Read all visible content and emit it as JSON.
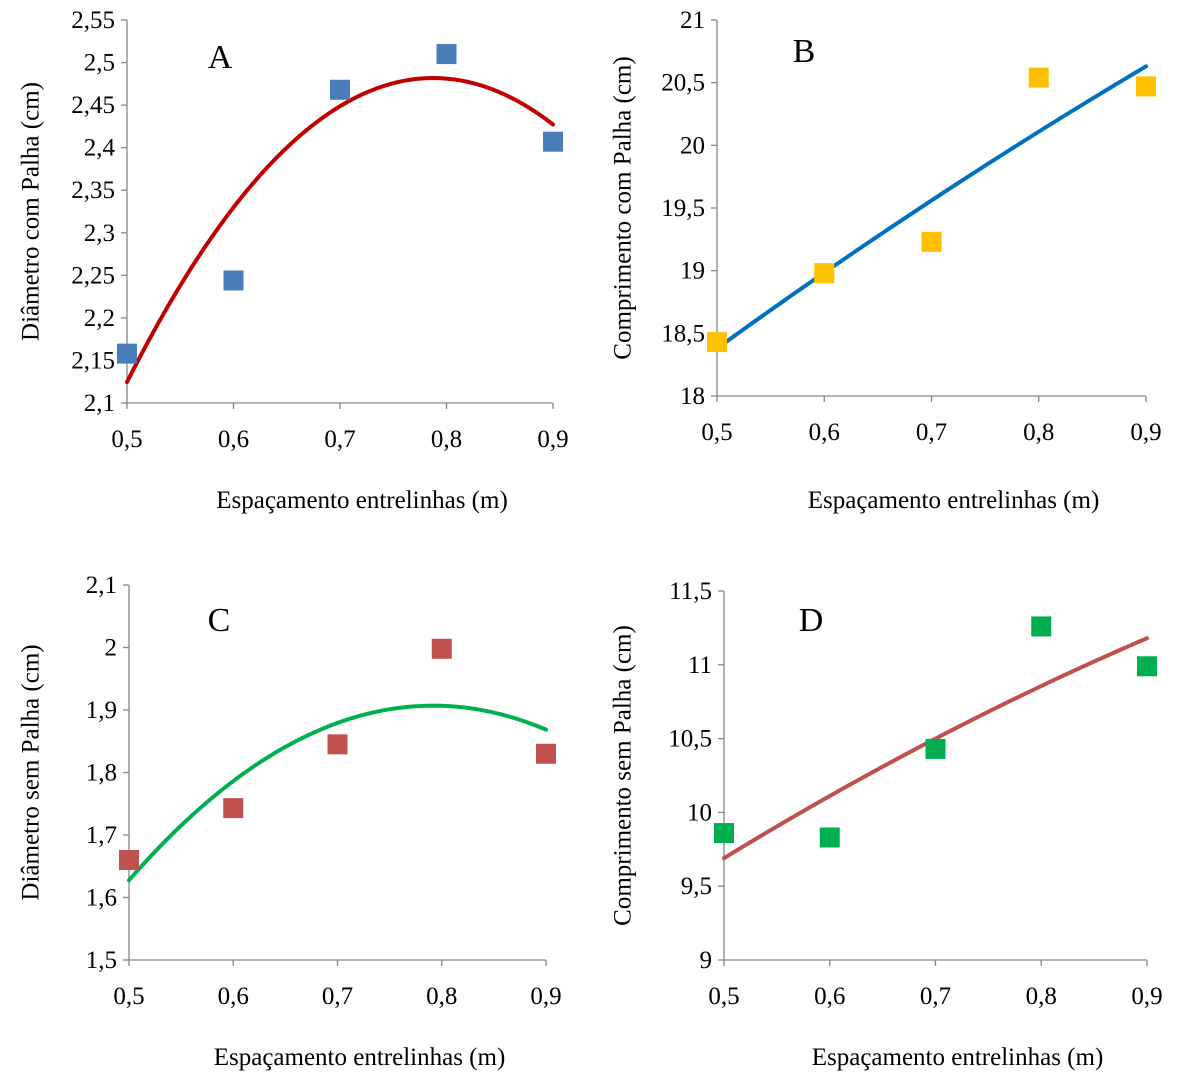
{
  "chart_data": [
    {
      "panel_label": "A",
      "type": "scatter",
      "x": [
        0.5,
        0.6,
        0.7,
        0.8,
        0.9
      ],
      "y": [
        2.158,
        2.244,
        2.468,
        2.51,
        2.407
      ],
      "marker_color": "#4a7ebb",
      "trendline": {
        "type": "quadratic",
        "color": "#c00000",
        "points": [
          [
            0.5,
            2.123
          ],
          [
            0.65,
            2.405
          ],
          [
            0.8,
            2.475
          ],
          [
            0.9,
            2.43
          ]
        ]
      },
      "xlabel": "Espaçamento entrelinhas (m)",
      "ylabel": "Diâmetro com Palha (cm)",
      "xlim": [
        0.5,
        0.9
      ],
      "ylim": [
        2.1,
        2.55
      ],
      "xticks": [
        "0,5",
        "0,6",
        "0,7",
        "0,8",
        "0,9"
      ],
      "yticks": [
        "2,1",
        "2,15",
        "2,2",
        "2,25",
        "2,3",
        "2,35",
        "2,4",
        "2,45",
        "2,5",
        "2,55"
      ],
      "grid": false
    },
    {
      "panel_label": "B",
      "type": "scatter",
      "x": [
        0.5,
        0.6,
        0.7,
        0.8,
        0.9
      ],
      "y": [
        18.43,
        18.98,
        19.23,
        20.54,
        20.47
      ],
      "marker_color": "#ffc000",
      "trendline": {
        "type": "quadratic",
        "color": "#0070c0",
        "points": [
          [
            0.5,
            18.38
          ],
          [
            0.7,
            19.56
          ],
          [
            0.9,
            20.63
          ]
        ]
      },
      "xlabel": "Espaçamento entrelinhas (m)",
      "ylabel": "Comprimento com Palha (cm)",
      "xlim": [
        0.5,
        0.9
      ],
      "ylim": [
        18,
        21
      ],
      "xticks": [
        "0,5",
        "0,6",
        "0,7",
        "0,8",
        "0,9"
      ],
      "yticks": [
        "18",
        "18,5",
        "19",
        "19,5",
        "20",
        "20,5",
        "21"
      ],
      "grid": false
    },
    {
      "panel_label": "C",
      "type": "scatter",
      "x": [
        0.5,
        0.6,
        0.7,
        0.8,
        0.9
      ],
      "y": [
        1.66,
        1.743,
        1.845,
        1.998,
        1.83
      ],
      "marker_color": "#c0504d",
      "trendline": {
        "type": "quadratic",
        "color": "#00b050",
        "points": [
          [
            0.5,
            1.628
          ],
          [
            0.65,
            1.84
          ],
          [
            0.8,
            1.908
          ],
          [
            0.9,
            1.868
          ]
        ]
      },
      "xlabel": "Espaçamento entrelinhas (m)",
      "ylabel": "Diâmetro sem Palha (cm)",
      "xlim": [
        0.5,
        0.9
      ],
      "ylim": [
        1.5,
        2.1
      ],
      "xticks": [
        "0,5",
        "0,6",
        "0,7",
        "0,8",
        "0,9"
      ],
      "yticks": [
        "1,5",
        "1,6",
        "1,7",
        "1,8",
        "1,9",
        "2",
        "2,1"
      ],
      "grid": false
    },
    {
      "panel_label": "D",
      "type": "scatter",
      "x": [
        0.5,
        0.6,
        0.7,
        0.8,
        0.9
      ],
      "y": [
        9.86,
        9.83,
        10.43,
        11.26,
        10.99
      ],
      "marker_color": "#00b050",
      "trendline": {
        "type": "quadratic",
        "color": "#c0504d",
        "points": [
          [
            0.5,
            9.69
          ],
          [
            0.7,
            10.5
          ],
          [
            0.9,
            11.18
          ]
        ]
      },
      "xlabel": "Espaçamento entrelinhas (m)",
      "ylabel": "Comprimento sem Palha (cm)",
      "xlim": [
        0.5,
        0.9
      ],
      "ylim": [
        9,
        11.5
      ],
      "xticks": [
        "0,5",
        "0,6",
        "0,7",
        "0,8",
        "0,9"
      ],
      "yticks": [
        "9",
        "9,5",
        "10",
        "10,5",
        "11",
        "11,5"
      ],
      "grid": false
    }
  ]
}
